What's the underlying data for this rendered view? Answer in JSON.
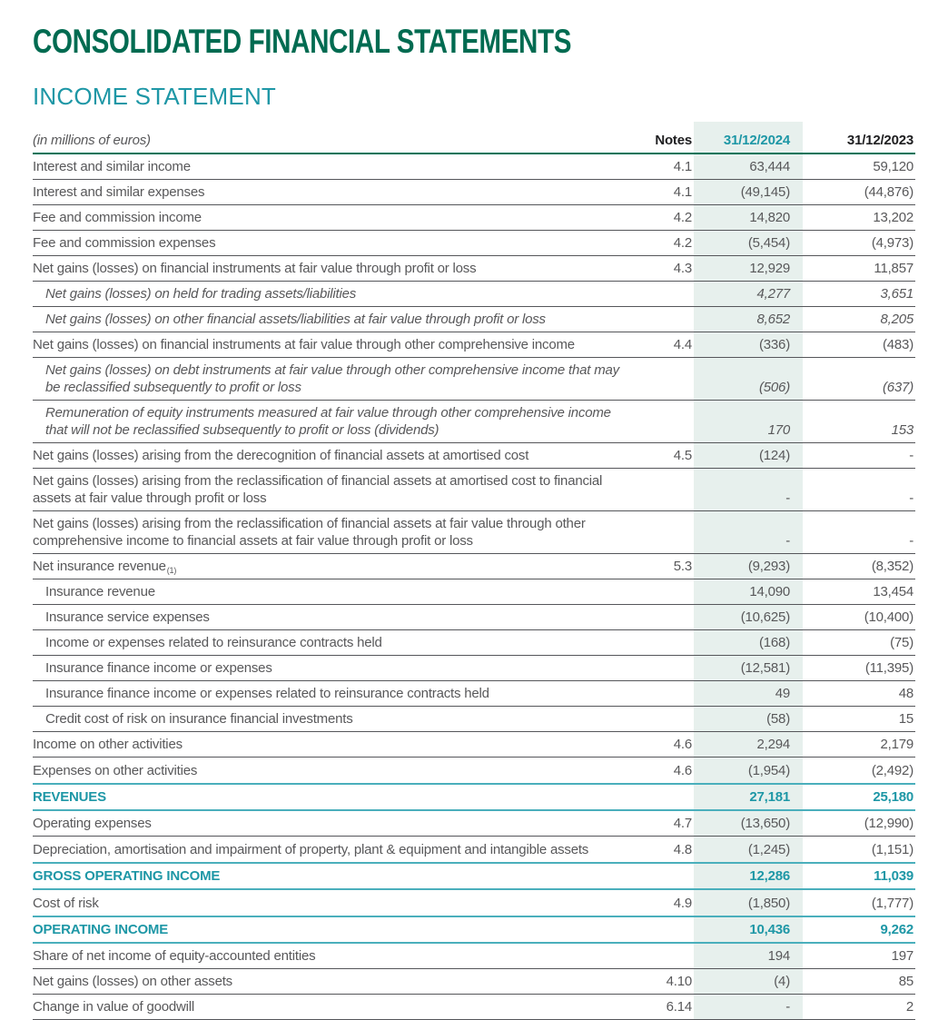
{
  "page": {
    "title": "CONSOLIDATED FINANCIAL STATEMENTS",
    "subtitle": "INCOME STATEMENT"
  },
  "colors": {
    "green": "#006B51",
    "green-border": "#00745A",
    "teal": "#1E97A6",
    "teal-border": "#4AAFBC",
    "hl": "#E7F0ED",
    "body": "#58585A",
    "dark": "#1E1E20",
    "border": "#55565A"
  },
  "table": {
    "unit_label": "(in millions of euros)",
    "columns": {
      "notes": "Notes",
      "y2024": "31/12/2024",
      "y2023": "31/12/2023"
    },
    "rows": [
      {
        "label": "Interest and similar income",
        "notes": "4.1",
        "v2024": "63,444",
        "v2023": "59,120",
        "style": "normal"
      },
      {
        "label": "Interest and similar expenses",
        "notes": "4.1",
        "v2024": "(49,145)",
        "v2023": "(44,876)",
        "style": "normal"
      },
      {
        "label": "Fee and commission income",
        "notes": "4.2",
        "v2024": "14,820",
        "v2023": "13,202",
        "style": "normal"
      },
      {
        "label": "Fee and commission expenses",
        "notes": "4.2",
        "v2024": "(5,454)",
        "v2023": "(4,973)",
        "style": "normal"
      },
      {
        "label": "Net gains (losses) on financial instruments at fair value through profit or loss",
        "notes": "4.3",
        "v2024": "12,929",
        "v2023": "11,857",
        "style": "normal"
      },
      {
        "label": "Net gains (losses) on held for trading assets/liabilities",
        "notes": "",
        "v2024": "4,277",
        "v2023": "3,651",
        "style": "italic"
      },
      {
        "label": "Net gains (losses) on other financial assets/liabilities at fair value through profit or loss",
        "notes": "",
        "v2024": "8,652",
        "v2023": "8,205",
        "style": "italic"
      },
      {
        "label": "Net gains (losses) on financial instruments at fair value through other comprehensive income",
        "notes": "4.4",
        "v2024": "(336)",
        "v2023": "(483)",
        "style": "normal"
      },
      {
        "label": "Net gains (losses) on debt instruments at fair value through other comprehensive income that may be reclassified subsequently to profit or loss",
        "notes": "",
        "v2024": "(506)",
        "v2023": "(637)",
        "style": "italic"
      },
      {
        "label": "Remuneration of equity instruments measured at fair value through other comprehensive income that will not be reclassified subsequently to profit or loss (dividends)",
        "notes": "",
        "v2024": "170",
        "v2023": "153",
        "style": "italic"
      },
      {
        "label": "Net gains (losses) arising from the derecognition of financial assets at amortised cost",
        "notes": "4.5",
        "v2024": "(124)",
        "v2023": "-",
        "style": "normal"
      },
      {
        "label": "Net gains (losses) arising from the reclassification of financial assets at amortised cost to financial assets at fair value through profit or loss",
        "notes": "",
        "v2024": "-",
        "v2023": "-",
        "style": "normal"
      },
      {
        "label": "Net gains (losses) arising from the reclassification of financial assets at fair value through other comprehensive income to financial assets at fair value through profit or loss",
        "notes": "",
        "v2024": "-",
        "v2023": "-",
        "style": "normal"
      },
      {
        "label": "Net insurance revenue",
        "sup": "(1)",
        "notes": "5.3",
        "v2024": "(9,293)",
        "v2023": "(8,352)",
        "style": "normal"
      },
      {
        "label": "Insurance revenue",
        "notes": "",
        "v2024": "14,090",
        "v2023": "13,454",
        "style": "sub"
      },
      {
        "label": "Insurance service expenses",
        "notes": "",
        "v2024": "(10,625)",
        "v2023": "(10,400)",
        "style": "sub"
      },
      {
        "label": "Income or expenses related to reinsurance contracts held",
        "notes": "",
        "v2024": "(168)",
        "v2023": "(75)",
        "style": "sub"
      },
      {
        "label": "Insurance finance income or expenses",
        "notes": "",
        "v2024": "(12,581)",
        "v2023": "(11,395)",
        "style": "sub"
      },
      {
        "label": "Insurance finance income or expenses related to reinsurance contracts held",
        "notes": "",
        "v2024": "49",
        "v2023": "48",
        "style": "sub"
      },
      {
        "label": "Credit cost of risk on insurance financial investments",
        "notes": "",
        "v2024": "(58)",
        "v2023": "15",
        "style": "sub"
      },
      {
        "label": "Income on other activities",
        "notes": "4.6",
        "v2024": "2,294",
        "v2023": "2,179",
        "style": "normal"
      },
      {
        "label": "Expenses on other activities",
        "notes": "4.6",
        "v2024": "(1,954)",
        "v2023": "(2,492)",
        "style": "normal"
      },
      {
        "label": "REVENUES",
        "notes": "",
        "v2024": "27,181",
        "v2023": "25,180",
        "style": "summary"
      },
      {
        "label": "Operating expenses",
        "notes": "4.7",
        "v2024": "(13,650)",
        "v2023": "(12,990)",
        "style": "normal"
      },
      {
        "label": "Depreciation, amortisation and impairment of property, plant & equipment and intangible assets",
        "notes": "4.8",
        "v2024": "(1,245)",
        "v2023": "(1,151)",
        "style": "normal"
      },
      {
        "label": "GROSS OPERATING INCOME",
        "notes": "",
        "v2024": "12,286",
        "v2023": "11,039",
        "style": "summary"
      },
      {
        "label": "Cost of risk",
        "notes": "4.9",
        "v2024": "(1,850)",
        "v2023": "(1,777)",
        "style": "normal"
      },
      {
        "label": "OPERATING INCOME",
        "notes": "",
        "v2024": "10,436",
        "v2023": "9,262",
        "style": "summary"
      },
      {
        "label": "Share of net income of equity-accounted entities",
        "notes": "",
        "v2024": "194",
        "v2023": "197",
        "style": "normal"
      },
      {
        "label": "Net gains (losses) on other assets",
        "notes": "4.10",
        "v2024": "(4)",
        "v2023": "85",
        "style": "normal"
      },
      {
        "label": "Change in value of goodwill",
        "notes": "6.14",
        "v2024": "-",
        "v2023": "2",
        "style": "normal"
      }
    ]
  }
}
